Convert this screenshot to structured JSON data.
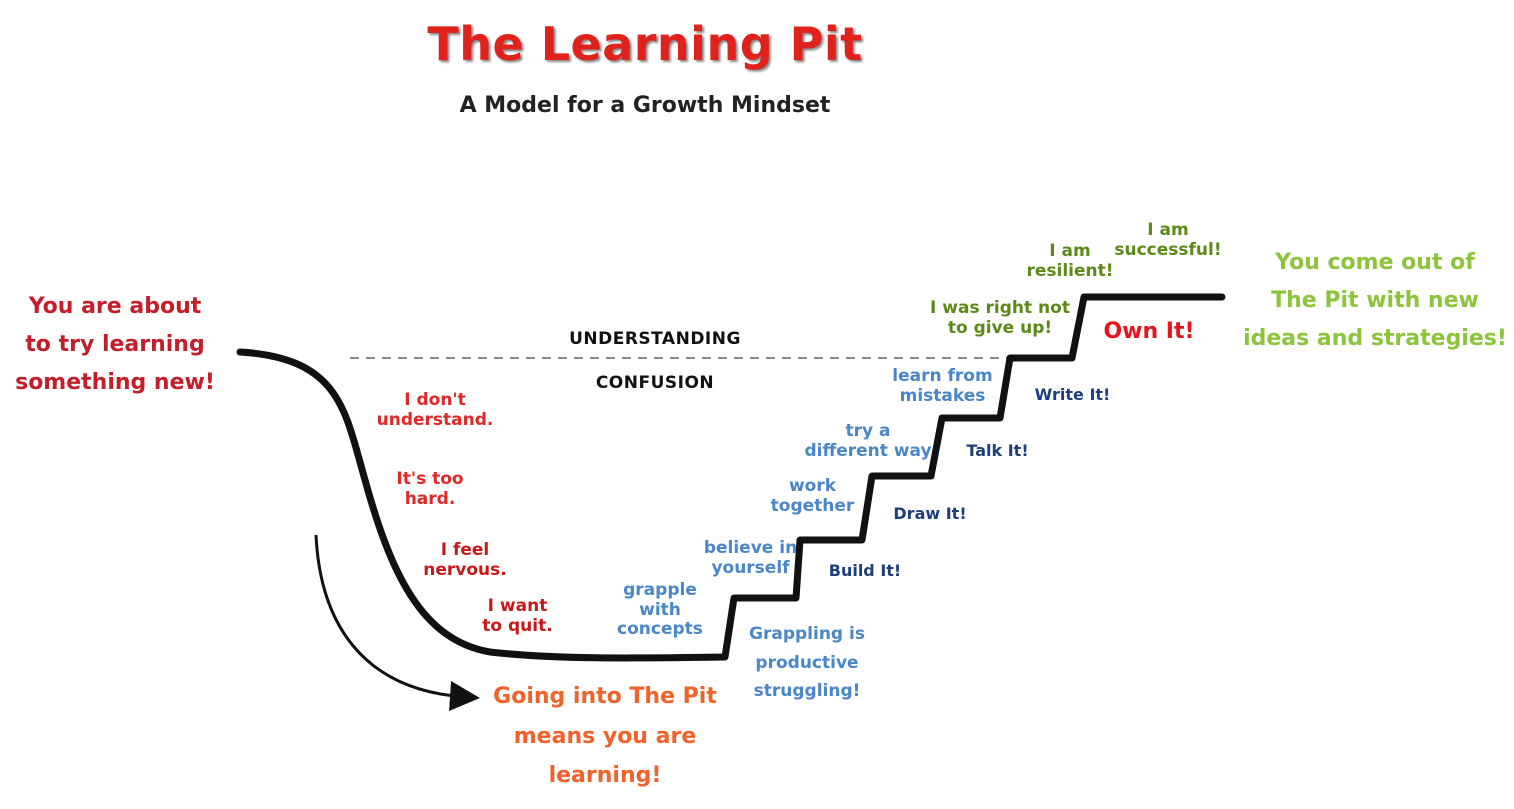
{
  "title": "The Learning Pit",
  "subtitle": "A Model for a Growth Mindset",
  "zones": {
    "above": "UNDERSTANDING",
    "below": "CONFUSION"
  },
  "start_text": [
    "You are about",
    "to try learning",
    "something new!"
  ],
  "end_text": [
    "You come out of",
    "The Pit with new",
    "ideas and strategies!"
  ],
  "pit_text": [
    "Going into The Pit",
    "means you are",
    "learning!"
  ],
  "negative_thoughts": [
    [
      "I don't",
      "understand."
    ],
    [
      "It's too",
      "hard."
    ],
    [
      "I feel",
      "nervous."
    ],
    [
      "I want",
      "to quit."
    ]
  ],
  "step_labels": [
    [
      "grapple",
      "with",
      "concepts"
    ],
    [
      "believe in",
      "yourself"
    ],
    [
      "work",
      "together"
    ],
    [
      "try a",
      "different way"
    ],
    [
      "learn from",
      "mistakes"
    ],
    [
      "I was right not",
      "to give up!"
    ],
    [
      "I am",
      "resilient!"
    ],
    [
      "I am",
      "successful!"
    ]
  ],
  "actions": [
    "Build It!",
    "Draw It!",
    "Talk It!",
    "Write It!",
    "Own It!"
  ],
  "struggle_note": [
    "Grappling is",
    "productive",
    "struggling!"
  ],
  "colors": {
    "title": "#e0221c",
    "negative": "#e02828",
    "blue": "#4a86c8",
    "navy": "#1f3f7a",
    "green": "#5c8a18",
    "light_green": "#8cc43c",
    "orange": "#f0622a",
    "own_it": "#e8141c",
    "start": "#c41e2a"
  }
}
